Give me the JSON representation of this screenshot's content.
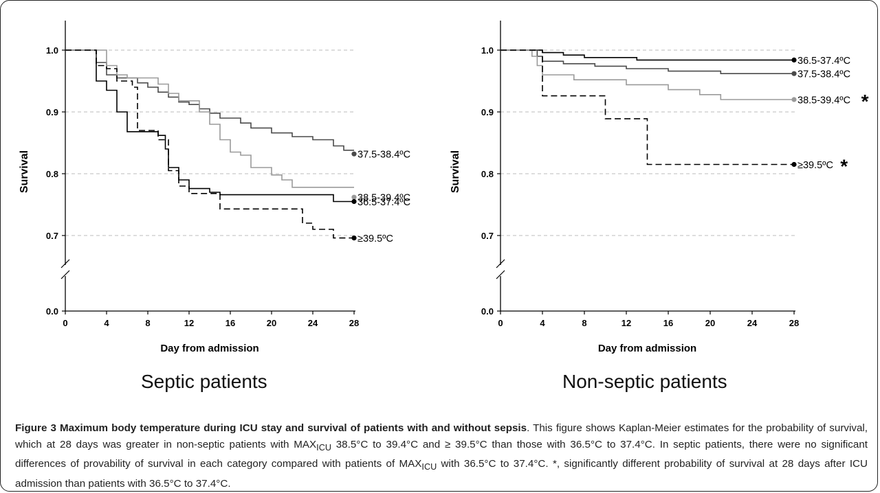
{
  "chart_data": [
    {
      "type": "line",
      "subtype": "kaplan-meier-step",
      "panel_title": "Septic patients",
      "xlabel": "Day from admission",
      "ylabel": "Survival",
      "x_ticks": [
        "0",
        "4",
        "8",
        "12",
        "16",
        "20",
        "24",
        "28"
      ],
      "y_ticks": [
        "0.0",
        "0.7",
        "0.8",
        "0.9",
        "1.0"
      ],
      "xlim": [
        0,
        28
      ],
      "ylim_upper": [
        0.65,
        1.05
      ],
      "axis_break": true,
      "grid": "horizontal dashed",
      "series": [
        {
          "name": "36.5-37.4ºC",
          "color": "#000000",
          "dash": "solid",
          "points": [
            [
              0,
              1.0
            ],
            [
              3,
              1.0
            ],
            [
              3,
              0.95
            ],
            [
              4,
              0.95
            ],
            [
              4,
              0.935
            ],
            [
              5,
              0.935
            ],
            [
              5,
              0.9
            ],
            [
              6,
              0.9
            ],
            [
              6,
              0.868
            ],
            [
              9,
              0.868
            ],
            [
              9,
              0.862
            ],
            [
              9.7,
              0.862
            ],
            [
              9.7,
              0.84
            ],
            [
              10,
              0.84
            ],
            [
              10,
              0.81
            ],
            [
              11,
              0.81
            ],
            [
              11,
              0.79
            ],
            [
              12,
              0.79
            ],
            [
              12,
              0.776
            ],
            [
              14,
              0.776
            ],
            [
              14,
              0.77
            ],
            [
              15,
              0.77
            ],
            [
              15,
              0.766
            ],
            [
              26,
              0.766
            ],
            [
              26,
              0.755
            ],
            [
              28,
              0.755
            ]
          ]
        },
        {
          "name": "37.5-38.4ºC",
          "color": "#4a4a4a",
          "dash": "solid",
          "points": [
            [
              0,
              1.0
            ],
            [
              3,
              1.0
            ],
            [
              3,
              0.98
            ],
            [
              4,
              0.98
            ],
            [
              4,
              0.96
            ],
            [
              5,
              0.96
            ],
            [
              5,
              0.955
            ],
            [
              7,
              0.955
            ],
            [
              7,
              0.947
            ],
            [
              8,
              0.947
            ],
            [
              8,
              0.94
            ],
            [
              9,
              0.94
            ],
            [
              9,
              0.932
            ],
            [
              10,
              0.932
            ],
            [
              10,
              0.924
            ],
            [
              11,
              0.924
            ],
            [
              11,
              0.916
            ],
            [
              12,
              0.916
            ],
            [
              12,
              0.912
            ],
            [
              13,
              0.912
            ],
            [
              13,
              0.905
            ],
            [
              14,
              0.905
            ],
            [
              14,
              0.898
            ],
            [
              15,
              0.898
            ],
            [
              15,
              0.89
            ],
            [
              17,
              0.89
            ],
            [
              17,
              0.882
            ],
            [
              18,
              0.882
            ],
            [
              18,
              0.874
            ],
            [
              20,
              0.874
            ],
            [
              20,
              0.866
            ],
            [
              22,
              0.866
            ],
            [
              22,
              0.86
            ],
            [
              24,
              0.86
            ],
            [
              24,
              0.855
            ],
            [
              26,
              0.855
            ],
            [
              26,
              0.845
            ],
            [
              27,
              0.845
            ],
            [
              27,
              0.838
            ],
            [
              28,
              0.838
            ]
          ]
        },
        {
          "name": "38.5-39.4ºC",
          "color": "#9a9a9a",
          "dash": "solid",
          "points": [
            [
              0,
              1.0
            ],
            [
              4,
              1.0
            ],
            [
              4,
              0.975
            ],
            [
              5,
              0.975
            ],
            [
              5,
              0.96
            ],
            [
              6,
              0.96
            ],
            [
              6,
              0.955
            ],
            [
              9,
              0.955
            ],
            [
              9,
              0.945
            ],
            [
              10,
              0.945
            ],
            [
              10,
              0.93
            ],
            [
              11,
              0.93
            ],
            [
              11,
              0.918
            ],
            [
              13,
              0.918
            ],
            [
              13,
              0.9
            ],
            [
              14,
              0.9
            ],
            [
              14,
              0.88
            ],
            [
              15,
              0.88
            ],
            [
              15,
              0.855
            ],
            [
              16,
              0.855
            ],
            [
              16,
              0.835
            ],
            [
              17,
              0.835
            ],
            [
              17,
              0.83
            ],
            [
              18,
              0.83
            ],
            [
              18,
              0.81
            ],
            [
              20,
              0.81
            ],
            [
              20,
              0.798
            ],
            [
              21,
              0.798
            ],
            [
              21,
              0.79
            ],
            [
              22,
              0.79
            ],
            [
              22,
              0.778
            ],
            [
              28,
              0.778
            ]
          ]
        },
        {
          "name": "≥39.5ºC",
          "color": "#000000",
          "dash": "dashed",
          "points": [
            [
              0,
              1.0
            ],
            [
              3,
              1.0
            ],
            [
              3,
              0.975
            ],
            [
              4,
              0.975
            ],
            [
              4,
              0.97
            ],
            [
              5,
              0.97
            ],
            [
              5,
              0.95
            ],
            [
              6.5,
              0.95
            ],
            [
              6.5,
              0.94
            ],
            [
              7,
              0.94
            ],
            [
              7,
              0.87
            ],
            [
              9,
              0.87
            ],
            [
              9,
              0.855
            ],
            [
              10,
              0.855
            ],
            [
              10,
              0.805
            ],
            [
              11,
              0.805
            ],
            [
              11,
              0.78
            ],
            [
              12,
              0.78
            ],
            [
              12,
              0.768
            ],
            [
              15,
              0.768
            ],
            [
              15,
              0.743
            ],
            [
              23,
              0.743
            ],
            [
              23,
              0.72
            ],
            [
              24,
              0.72
            ],
            [
              24,
              0.71
            ],
            [
              26,
              0.71
            ],
            [
              26,
              0.696
            ],
            [
              28,
              0.696
            ]
          ]
        }
      ],
      "endpoints": [
        {
          "label": "37.5-38.4ºC",
          "y": 0.832,
          "color": "#4a4a4a"
        },
        {
          "label": "38.5-39.4ºC",
          "y": 0.762,
          "color": "#9a9a9a"
        },
        {
          "label": "36.5-37.4ºC",
          "y": 0.755,
          "color": "#000000"
        },
        {
          "label": "≥39.5ºC",
          "y": 0.696,
          "color": "#000000"
        }
      ]
    },
    {
      "type": "line",
      "subtype": "kaplan-meier-step",
      "panel_title": "Non-septic patients",
      "xlabel": "Day from admission",
      "ylabel": "Survival",
      "x_ticks": [
        "0",
        "4",
        "8",
        "12",
        "16",
        "20",
        "24",
        "28"
      ],
      "y_ticks": [
        "0.0",
        "0.7",
        "0.8",
        "0.9",
        "1.0"
      ],
      "xlim": [
        0,
        28
      ],
      "ylim_upper": [
        0.65,
        1.05
      ],
      "axis_break": true,
      "grid": "horizontal dashed",
      "series": [
        {
          "name": "36.5-37.4ºC",
          "color": "#000000",
          "dash": "solid",
          "points": [
            [
              0,
              1.0
            ],
            [
              4,
              1.0
            ],
            [
              4,
              0.996
            ],
            [
              6,
              0.996
            ],
            [
              6,
              0.992
            ],
            [
              8,
              0.992
            ],
            [
              8,
              0.988
            ],
            [
              13,
              0.988
            ],
            [
              13,
              0.984
            ],
            [
              28,
              0.984
            ]
          ]
        },
        {
          "name": "37.5-38.4ºC",
          "color": "#4a4a4a",
          "dash": "solid",
          "points": [
            [
              0,
              1.0
            ],
            [
              3.5,
              1.0
            ],
            [
              3.5,
              0.99
            ],
            [
              4,
              0.99
            ],
            [
              4,
              0.982
            ],
            [
              6,
              0.982
            ],
            [
              6,
              0.978
            ],
            [
              9,
              0.978
            ],
            [
              9,
              0.974
            ],
            [
              12,
              0.974
            ],
            [
              12,
              0.97
            ],
            [
              16,
              0.97
            ],
            [
              16,
              0.966
            ],
            [
              21,
              0.966
            ],
            [
              21,
              0.962
            ],
            [
              28,
              0.962
            ]
          ]
        },
        {
          "name": "38.5-39.4ºC",
          "color": "#9a9a9a",
          "dash": "solid",
          "points": [
            [
              0,
              1.0
            ],
            [
              3,
              1.0
            ],
            [
              3,
              0.99
            ],
            [
              3.5,
              0.99
            ],
            [
              3.5,
              0.975
            ],
            [
              4,
              0.975
            ],
            [
              4,
              0.96
            ],
            [
              7,
              0.96
            ],
            [
              7,
              0.952
            ],
            [
              12,
              0.952
            ],
            [
              12,
              0.944
            ],
            [
              16,
              0.944
            ],
            [
              16,
              0.936
            ],
            [
              19,
              0.936
            ],
            [
              19,
              0.928
            ],
            [
              21,
              0.928
            ],
            [
              21,
              0.92
            ],
            [
              28,
              0.92
            ]
          ]
        },
        {
          "name": "≥39.5ºC",
          "color": "#000000",
          "dash": "dashed",
          "points": [
            [
              0,
              1.0
            ],
            [
              4,
              1.0
            ],
            [
              4,
              0.926
            ],
            [
              10,
              0.926
            ],
            [
              10,
              0.889
            ],
            [
              14,
              0.889
            ],
            [
              14,
              0.815
            ],
            [
              28,
              0.815
            ]
          ]
        }
      ],
      "endpoints": [
        {
          "label": "36.5-37.4ºC",
          "y": 0.984,
          "color": "#000000",
          "asterisk": false
        },
        {
          "label": "37.5-38.4ºC",
          "y": 0.962,
          "color": "#4a4a4a",
          "asterisk": false
        },
        {
          "label": "38.5-39.4ºC",
          "y": 0.92,
          "color": "#9a9a9a",
          "asterisk": true
        },
        {
          "label": "≥39.5ºC",
          "y": 0.815,
          "color": "#000000",
          "asterisk": true
        }
      ]
    }
  ],
  "caption": {
    "figure_label": "Figure 3",
    "title": "Maximum body temperature during ICU stay and survival of patients with and without sepsis",
    "text_1": ". This figure shows Kaplan-Meier estimates for the probability of survival, which at 28 days was greater in non-septic patients with MAX",
    "sub_1": "ICU",
    "text_2": " 38.5°C to 39.4°C and ≥ 39.5°C than those with 36.5°C to 37.4°C. In septic patients, there were no significant differences of provability of survival in each category compared with patients of MAX",
    "sub_2": "ICU",
    "text_3": " with 36.5°C to 37.4°C. *, significantly different probability of survival at 28 days after ICU admission than patients with 36.5°C to 37.4°C."
  }
}
